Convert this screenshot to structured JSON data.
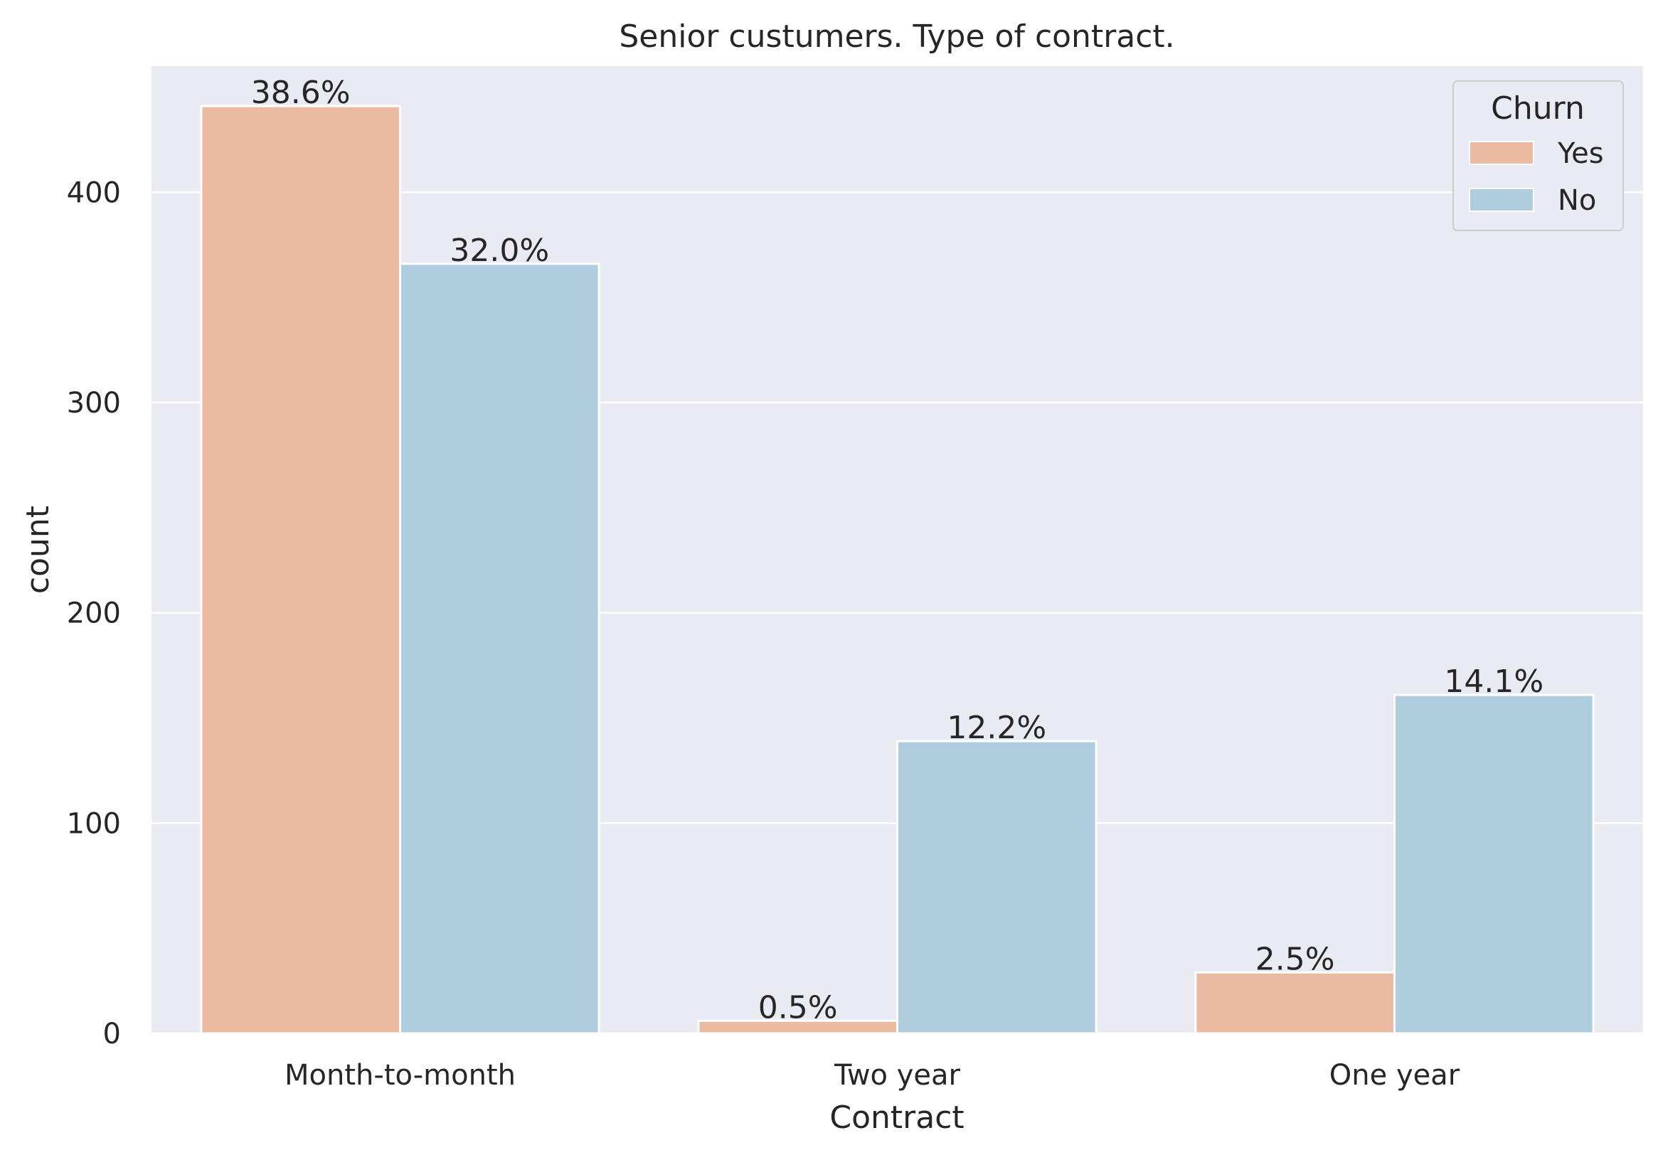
{
  "chart_data": {
    "type": "bar",
    "title": "Senior custumers. Type of contract.",
    "xlabel": "Contract",
    "ylabel": "count",
    "categories": [
      "Month-to-month",
      "Two year",
      "One year"
    ],
    "ylim": [
      0,
      460
    ],
    "yticks": [
      0,
      100,
      200,
      300,
      400
    ],
    "grid": true,
    "legend": {
      "title": "Churn",
      "placement": "top-right"
    },
    "series": [
      {
        "name": "Yes",
        "color": "#ebbaa3",
        "values": [
          441,
          6,
          29
        ],
        "labels": [
          "38.6%",
          "0.5%",
          "2.5%"
        ]
      },
      {
        "name": "No",
        "color": "#b0cddd",
        "values": [
          366,
          139,
          161
        ],
        "labels": [
          "32.0%",
          "12.2%",
          "14.1%"
        ]
      }
    ],
    "background": "#eaeaf2",
    "grid_color": "#ffffff"
  }
}
